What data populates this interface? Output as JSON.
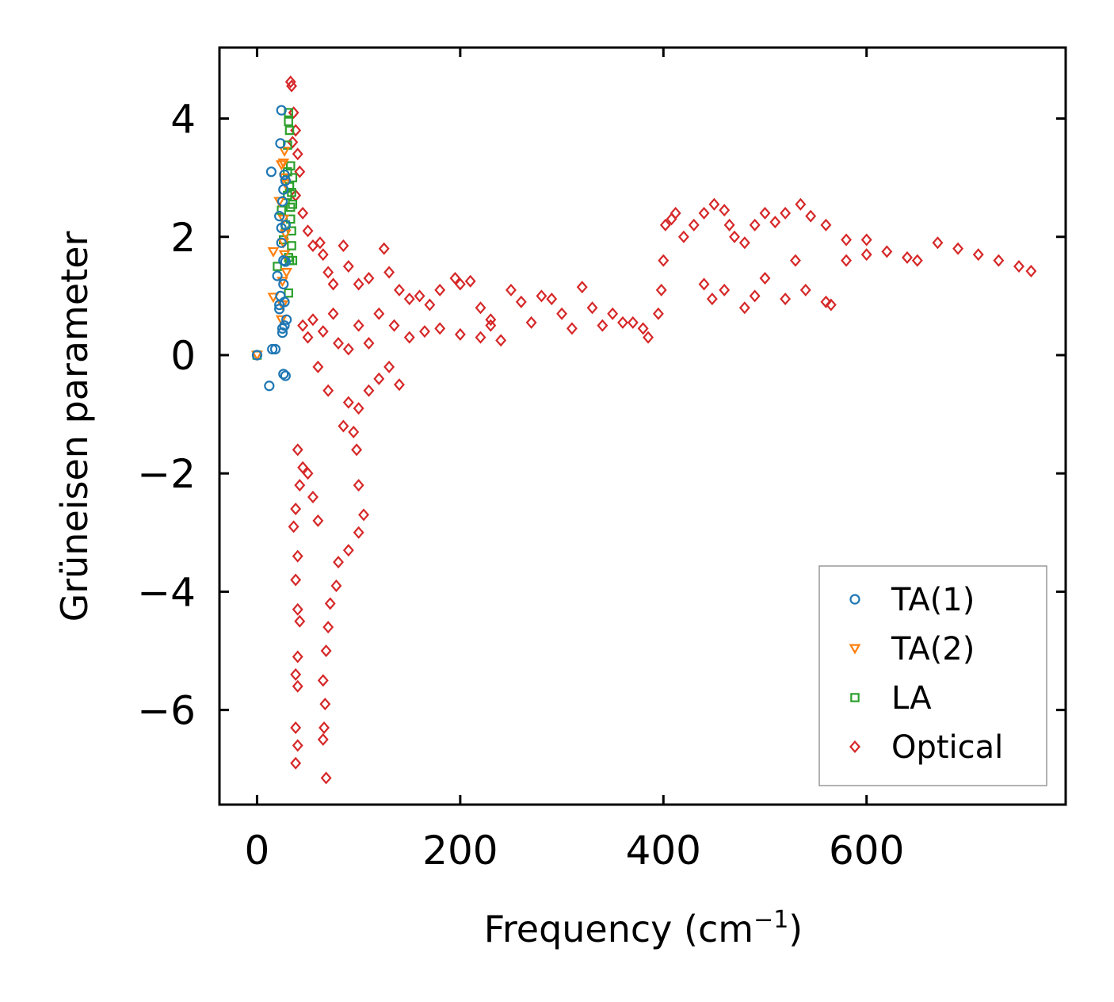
{
  "chart_data": {
    "type": "scatter",
    "title": "",
    "xlabel": "Frequency (cm",
    "xlabel_sup": "−1",
    "xlabel_suffix": ")",
    "ylabel": "Grüneisen parameter",
    "xlim": [
      -37,
      796
    ],
    "ylim": [
      -7.6,
      5.2
    ],
    "xticks": [
      0,
      200,
      400,
      600
    ],
    "xtick_labels": [
      "0",
      "200",
      "400",
      "600"
    ],
    "yticks": [
      -6,
      -4,
      -2,
      0,
      2,
      4
    ],
    "ytick_labels": [
      "−6",
      "−4",
      "−2",
      "0",
      "2",
      "4"
    ],
    "grid": false,
    "legend_position": "lower-right",
    "series": [
      {
        "name": "TA(1)",
        "marker": "circle",
        "color": "#1f77b4",
        "points": [
          [
            0,
            0.0
          ],
          [
            12,
            -0.52
          ],
          [
            15,
            0.1
          ],
          [
            18,
            0.1
          ],
          [
            20,
            1.34
          ],
          [
            22,
            0.78
          ],
          [
            22,
            2.35
          ],
          [
            23,
            3.58
          ],
          [
            24,
            4.14
          ],
          [
            25,
            0.45
          ],
          [
            25,
            2.6
          ],
          [
            26,
            1.6
          ],
          [
            26,
            -0.32
          ],
          [
            27,
            3.05
          ],
          [
            27,
            0.9
          ],
          [
            28,
            2.2
          ],
          [
            28,
            2.95
          ],
          [
            28,
            1.58
          ],
          [
            29,
            0.6
          ],
          [
            24,
            2.15
          ],
          [
            23,
            1.0
          ],
          [
            25,
            0.38
          ],
          [
            26,
            2.8
          ],
          [
            24,
            1.9
          ],
          [
            26,
            1.2
          ],
          [
            14,
            3.1
          ],
          [
            22,
            0.85
          ],
          [
            27,
            0.5
          ],
          [
            28,
            -0.35
          ]
        ]
      },
      {
        "name": "TA(2)",
        "marker": "triangle-down",
        "color": "#ff7f0e",
        "points": [
          [
            0,
            0.0
          ],
          [
            16,
            1.75
          ],
          [
            16,
            0.98
          ],
          [
            22,
            2.6
          ],
          [
            24,
            3.22
          ],
          [
            26,
            3.25
          ],
          [
            27,
            3.45
          ],
          [
            26,
            1.9
          ],
          [
            25,
            0.85
          ],
          [
            28,
            2.05
          ],
          [
            29,
            1.4
          ],
          [
            27,
            1.7
          ],
          [
            26,
            2.3
          ],
          [
            24,
            0.6
          ],
          [
            28,
            2.9
          ],
          [
            27,
            3.0
          ],
          [
            25,
            1.25
          ]
        ]
      },
      {
        "name": "LA",
        "marker": "square",
        "color": "#2ca02c",
        "points": [
          [
            0,
            0.0
          ],
          [
            20,
            1.5
          ],
          [
            24,
            2.45
          ],
          [
            26,
            1.95
          ],
          [
            28,
            2.2
          ],
          [
            30,
            3.1
          ],
          [
            30,
            2.7
          ],
          [
            31,
            1.65
          ],
          [
            31,
            4.1
          ],
          [
            32,
            3.8
          ],
          [
            32,
            1.6
          ],
          [
            33,
            3.2
          ],
          [
            33,
            2.5
          ],
          [
            34,
            1.85
          ],
          [
            34,
            2.75
          ],
          [
            35,
            3.0
          ],
          [
            35,
            1.6
          ],
          [
            33,
            2.3
          ],
          [
            32,
            2.85
          ],
          [
            31,
            1.05
          ],
          [
            30,
            3.55
          ],
          [
            34,
            2.1
          ],
          [
            31,
            3.95
          ],
          [
            35,
            2.55
          ]
        ]
      },
      {
        "name": "Optical",
        "marker": "diamond",
        "color": "#d62728",
        "points": [
          [
            33,
            4.62
          ],
          [
            34,
            4.55
          ],
          [
            36,
            4.1
          ],
          [
            38,
            3.8
          ],
          [
            35,
            3.6
          ],
          [
            40,
            3.4
          ],
          [
            42,
            3.1
          ],
          [
            38,
            2.7
          ],
          [
            45,
            2.4
          ],
          [
            50,
            2.1
          ],
          [
            55,
            1.85
          ],
          [
            62,
            1.9
          ],
          [
            65,
            1.7
          ],
          [
            70,
            1.4
          ],
          [
            75,
            1.2
          ],
          [
            85,
            1.85
          ],
          [
            90,
            1.5
          ],
          [
            100,
            1.2
          ],
          [
            110,
            1.3
          ],
          [
            125,
            1.8
          ],
          [
            130,
            1.4
          ],
          [
            140,
            1.1
          ],
          [
            150,
            0.95
          ],
          [
            160,
            1.0
          ],
          [
            170,
            0.85
          ],
          [
            180,
            1.1
          ],
          [
            195,
            1.3
          ],
          [
            200,
            1.2
          ],
          [
            210,
            1.25
          ],
          [
            220,
            0.8
          ],
          [
            230,
            0.6
          ],
          [
            250,
            1.1
          ],
          [
            260,
            0.9
          ],
          [
            280,
            1.0
          ],
          [
            290,
            0.95
          ],
          [
            300,
            0.7
          ],
          [
            320,
            1.15
          ],
          [
            330,
            0.8
          ],
          [
            350,
            0.7
          ],
          [
            370,
            0.55
          ],
          [
            385,
            0.3
          ],
          [
            395,
            0.7
          ],
          [
            398,
            1.1
          ],
          [
            400,
            1.6
          ],
          [
            402,
            2.2
          ],
          [
            408,
            2.3
          ],
          [
            412,
            2.4
          ],
          [
            420,
            2.0
          ],
          [
            430,
            2.2
          ],
          [
            440,
            2.4
          ],
          [
            450,
            2.55
          ],
          [
            460,
            2.45
          ],
          [
            465,
            2.2
          ],
          [
            470,
            2.0
          ],
          [
            480,
            1.9
          ],
          [
            490,
            2.2
          ],
          [
            500,
            2.4
          ],
          [
            510,
            2.25
          ],
          [
            520,
            2.4
          ],
          [
            535,
            2.55
          ],
          [
            545,
            2.35
          ],
          [
            560,
            2.2
          ],
          [
            580,
            1.95
          ],
          [
            600,
            1.95
          ],
          [
            620,
            1.75
          ],
          [
            640,
            1.65
          ],
          [
            650,
            1.6
          ],
          [
            670,
            1.9
          ],
          [
            690,
            1.8
          ],
          [
            710,
            1.7
          ],
          [
            730,
            1.6
          ],
          [
            750,
            1.5
          ],
          [
            762,
            1.42
          ],
          [
            448,
            0.95
          ],
          [
            460,
            1.1
          ],
          [
            480,
            0.8
          ],
          [
            490,
            1.0
          ],
          [
            520,
            0.95
          ],
          [
            540,
            1.1
          ],
          [
            560,
            0.9
          ],
          [
            565,
            0.85
          ],
          [
            440,
            1.2
          ],
          [
            500,
            1.3
          ],
          [
            530,
            1.6
          ],
          [
            580,
            1.6
          ],
          [
            600,
            1.7
          ],
          [
            130,
            -0.2
          ],
          [
            140,
            -0.5
          ],
          [
            120,
            -0.4
          ],
          [
            110,
            -0.6
          ],
          [
            100,
            -0.9
          ],
          [
            95,
            -1.3
          ],
          [
            98,
            -1.6
          ],
          [
            100,
            -2.2
          ],
          [
            105,
            -2.7
          ],
          [
            100,
            -3.0
          ],
          [
            90,
            -3.3
          ],
          [
            80,
            -3.5
          ],
          [
            78,
            -3.9
          ],
          [
            72,
            -4.2
          ],
          [
            70,
            -4.6
          ],
          [
            68,
            -5.0
          ],
          [
            65,
            -5.5
          ],
          [
            67,
            -5.9
          ],
          [
            66,
            -6.3
          ],
          [
            65,
            -6.5
          ],
          [
            68,
            -7.15
          ],
          [
            40,
            -1.6
          ],
          [
            45,
            -1.9
          ],
          [
            42,
            -2.2
          ],
          [
            38,
            -2.6
          ],
          [
            36,
            -2.9
          ],
          [
            40,
            -3.4
          ],
          [
            38,
            -3.8
          ],
          [
            40,
            -4.3
          ],
          [
            42,
            -4.5
          ],
          [
            40,
            -5.1
          ],
          [
            38,
            -5.4
          ],
          [
            40,
            -5.6
          ],
          [
            38,
            -6.3
          ],
          [
            40,
            -6.6
          ],
          [
            38,
            -6.9
          ],
          [
            50,
            -2.0
          ],
          [
            55,
            -2.4
          ],
          [
            60,
            -2.8
          ],
          [
            85,
            -1.2
          ],
          [
            90,
            -0.8
          ],
          [
            70,
            -0.6
          ],
          [
            60,
            -0.2
          ],
          [
            50,
            0.3
          ],
          [
            45,
            0.5
          ],
          [
            55,
            0.6
          ],
          [
            65,
            0.4
          ],
          [
            75,
            0.7
          ],
          [
            80,
            0.2
          ],
          [
            90,
            0.1
          ],
          [
            100,
            0.5
          ],
          [
            110,
            0.2
          ],
          [
            120,
            0.7
          ],
          [
            135,
            0.5
          ],
          [
            150,
            0.3
          ],
          [
            165,
            0.4
          ],
          [
            180,
            0.45
          ],
          [
            200,
            0.35
          ],
          [
            220,
            0.3
          ],
          [
            240,
            0.25
          ],
          [
            230,
            0.5
          ],
          [
            270,
            0.55
          ],
          [
            310,
            0.45
          ],
          [
            340,
            0.5
          ],
          [
            360,
            0.55
          ],
          [
            380,
            0.45
          ]
        ]
      }
    ]
  }
}
